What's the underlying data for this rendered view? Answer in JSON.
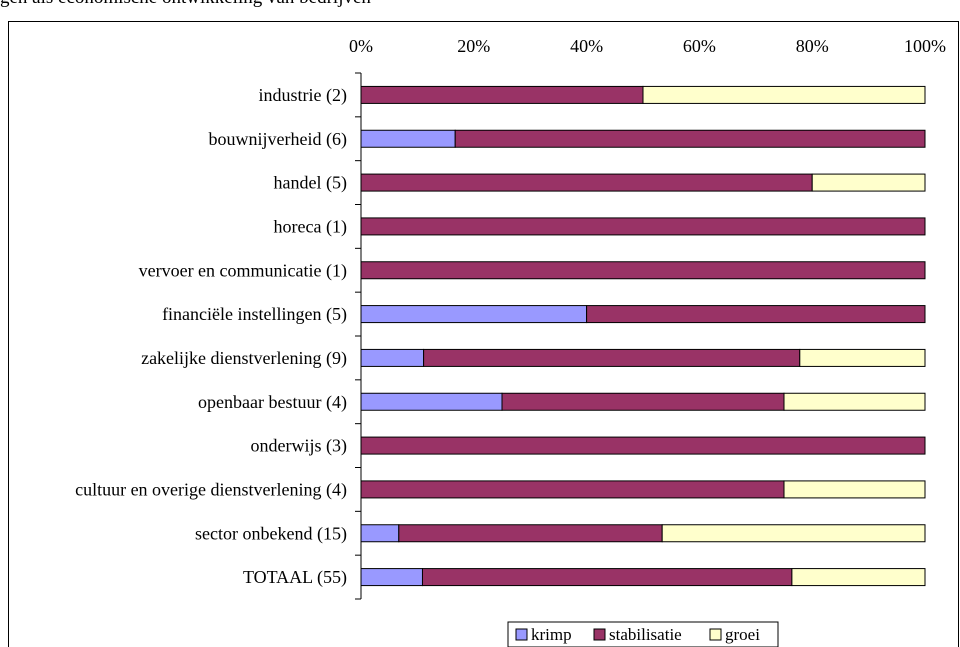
{
  "caption": "gen als economische ontwikkeling van bedrijven",
  "chart_data": {
    "type": "bar",
    "orientation": "horizontal",
    "stacked": "percent",
    "title": "",
    "xlabel": "",
    "ylabel": "",
    "xlim": [
      0,
      100
    ],
    "x_ticks": [
      "0%",
      "20%",
      "40%",
      "60%",
      "80%",
      "100%"
    ],
    "x_axis_position": "top",
    "grid": false,
    "legend_position": "bottom",
    "categories": [
      "industrie (2)",
      "bouwnijverheid (6)",
      "handel (5)",
      "horeca (1)",
      "vervoer en communicatie (1)",
      "financiële instellingen (5)",
      "zakelijke dienstverlening (9)",
      "openbaar bestuur (4)",
      "onderwijs (3)",
      "cultuur en overige dienstverlening (4)",
      "sector onbekend (15)",
      "TOTAAL (55)"
    ],
    "series": [
      {
        "name": "krimp",
        "color": "#9999FF",
        "values": [
          0,
          16.7,
          0,
          0,
          0,
          40,
          11.1,
          25,
          0,
          0,
          6.7,
          10.9
        ]
      },
      {
        "name": "stabilisatie",
        "color": "#993366",
        "values": [
          50,
          83.3,
          80,
          100,
          100,
          60,
          66.7,
          50,
          100,
          75,
          46.7,
          65.5
        ]
      },
      {
        "name": "groei",
        "color": "#FFFFCC",
        "values": [
          50,
          0,
          20,
          0,
          0,
          0,
          22.2,
          25,
          0,
          25,
          46.6,
          23.6
        ]
      }
    ]
  }
}
